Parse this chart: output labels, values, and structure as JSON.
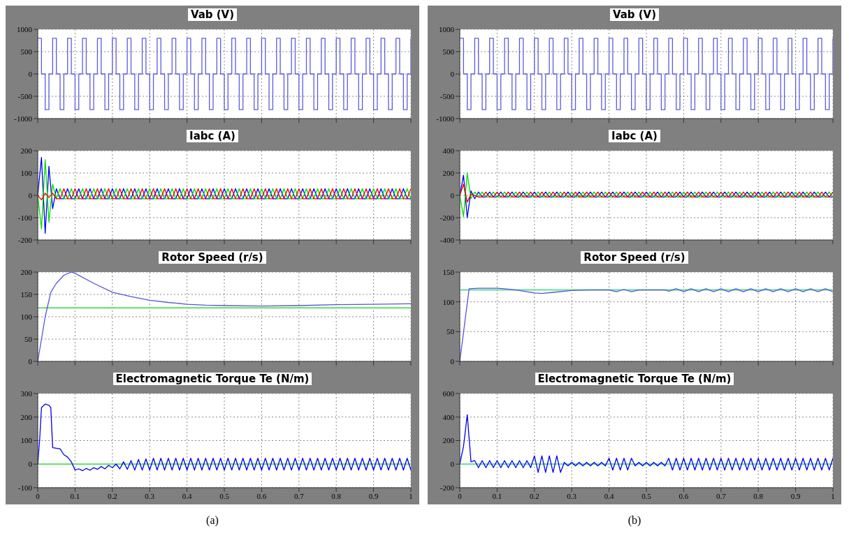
{
  "chart_data": [
    {
      "type": "step",
      "title": "Vab (V)",
      "x": [
        0,
        0.01,
        0.02,
        0.03,
        0.04,
        0.05,
        0.06,
        0.07,
        0.08,
        0.09,
        0.1,
        0.11,
        0.12,
        0.13,
        0.14,
        0.15,
        0.16,
        0.17,
        0.18,
        0.19,
        0.2,
        0.21,
        0.22,
        0.23,
        0.24,
        0.25,
        0.26,
        0.27,
        0.28,
        0.29,
        0.3,
        0.31,
        0.32,
        0.33,
        0.34,
        0.35,
        0.36,
        0.37,
        0.38,
        0.39,
        0.4,
        0.41,
        0.42,
        0.43,
        0.44,
        0.45,
        0.46,
        0.47,
        0.48,
        0.49,
        0.5,
        0.51,
        0.52,
        0.53,
        0.54,
        0.55,
        0.56,
        0.57,
        0.58,
        0.59,
        0.6,
        0.61,
        0.62,
        0.63,
        0.64,
        0.65,
        0.66,
        0.67,
        0.68,
        0.69,
        0.7,
        0.71,
        0.72,
        0.73,
        0.74,
        0.75,
        0.76,
        0.77,
        0.78,
        0.79,
        0.8,
        0.81,
        0.82,
        0.83,
        0.84,
        0.85,
        0.86,
        0.87,
        0.88,
        0.89,
        0.9,
        0.91,
        0.92,
        0.93,
        0.94,
        0.95,
        0.96,
        0.97,
        0.98,
        0.99,
        1
      ],
      "series": [
        {
          "color": "#5c5ce0",
          "values": [
            800,
            0,
            -800,
            0,
            800,
            0,
            -800,
            0,
            800,
            0,
            -800,
            0,
            800,
            0,
            -800,
            0,
            800,
            0,
            -800,
            0,
            800,
            0,
            -800,
            0,
            800,
            0,
            -800,
            0,
            800,
            0,
            -800,
            0,
            800,
            0,
            -800,
            0,
            800,
            0,
            -800,
            0,
            800,
            0,
            -800,
            0,
            800,
            0,
            -800,
            0,
            800,
            0,
            -800,
            0,
            800,
            0,
            -800,
            0,
            800,
            0,
            -800,
            0,
            800,
            0,
            -800,
            0,
            800,
            0,
            -800,
            0,
            800,
            0,
            -800,
            0,
            800,
            0,
            -800,
            0,
            800,
            0,
            -800,
            0,
            800,
            0,
            -800,
            0,
            800,
            0,
            -800,
            0,
            800,
            0,
            -800,
            0,
            800,
            0,
            -800,
            0,
            800,
            0,
            -800,
            0,
            800
          ]
        }
      ],
      "xlim": [
        0,
        1
      ],
      "xticks": [
        0,
        0.1,
        0.2,
        0.3,
        0.4,
        0.5,
        0.6,
        0.7,
        0.8,
        0.9,
        1
      ],
      "ylim": [
        -1000,
        1000
      ],
      "yticks": [
        -1000,
        -500,
        0,
        500,
        1000
      ],
      "grid": true,
      "tick_labels": "y"
    },
    {
      "type": "line",
      "title": "Iabc (A)",
      "x": [
        0,
        0.01,
        0.02,
        0.03,
        0.04,
        0.05,
        0.06,
        0.07,
        0.08,
        0.09,
        0.1,
        0.11,
        0.12,
        0.13,
        0.14,
        0.15,
        0.16,
        0.17,
        0.18,
        0.19,
        0.2,
        0.21,
        0.22,
        0.23,
        0.24,
        0.25,
        0.26,
        0.27,
        0.28,
        0.29,
        0.3,
        0.31,
        0.32,
        0.33,
        0.34,
        0.35,
        0.36,
        0.37,
        0.38,
        0.39,
        0.4,
        0.41,
        0.42,
        0.43,
        0.44,
        0.45,
        0.46,
        0.47,
        0.48,
        0.49,
        0.5,
        0.51,
        0.52,
        0.53,
        0.54,
        0.55,
        0.56,
        0.57,
        0.58,
        0.59,
        0.6,
        0.61,
        0.62,
        0.63,
        0.64,
        0.65,
        0.66,
        0.67,
        0.68,
        0.69,
        0.7,
        0.71,
        0.72,
        0.73,
        0.74,
        0.75,
        0.76,
        0.77,
        0.78,
        0.79,
        0.8,
        0.81,
        0.82,
        0.83,
        0.84,
        0.85,
        0.86,
        0.87,
        0.88,
        0.89,
        0.9,
        0.91,
        0.92,
        0.93,
        0.94,
        0.95,
        0.96,
        0.97,
        0.98,
        0.99,
        1
      ],
      "series": [
        {
          "color": "#0000ee",
          "values": [
            0,
            170,
            -170,
            130,
            -60,
            30,
            -15,
            -15,
            30,
            -15,
            -15,
            30,
            -15,
            -15,
            30,
            -15,
            -15,
            30,
            -15,
            -15,
            30,
            -15,
            -15,
            30,
            -15,
            -15,
            30,
            -15,
            -15,
            30,
            -15,
            -15,
            30,
            -15,
            -15,
            30,
            -15,
            -15,
            30,
            -15,
            -15,
            30,
            -15,
            -15,
            30,
            -15,
            -15,
            30,
            -15,
            -15,
            30,
            -15,
            -15,
            30,
            -15,
            -15,
            30,
            -15,
            -15,
            30,
            -15,
            -15,
            30,
            -15,
            -15,
            30,
            -15,
            -15,
            30,
            -15,
            -15,
            30,
            -15,
            -15,
            30,
            -15,
            -15,
            30,
            -15,
            -15,
            30,
            -15,
            -15,
            30,
            -15,
            -15,
            30,
            -15,
            -15,
            30,
            -15,
            -15,
            30,
            -15,
            -15,
            30,
            -15,
            -15,
            30,
            -15,
            -15
          ]
        },
        {
          "color": "#00dd00",
          "values": [
            0,
            -150,
            160,
            -120,
            50,
            -15,
            30,
            -15,
            -15,
            30,
            -15,
            -15,
            30,
            -15,
            -15,
            30,
            -15,
            -15,
            30,
            -15,
            -15,
            30,
            -15,
            -15,
            30,
            -15,
            -15,
            30,
            -15,
            -15,
            30,
            -15,
            -15,
            30,
            -15,
            -15,
            30,
            -15,
            -15,
            30,
            -15,
            -15,
            30,
            -15,
            -15,
            30,
            -15,
            -15,
            30,
            -15,
            -15,
            30,
            -15,
            -15,
            30,
            -15,
            -15,
            30,
            -15,
            -15,
            30,
            -15,
            -15,
            30,
            -15,
            -15,
            30,
            -15,
            -15,
            30,
            -15,
            -15,
            30,
            -15,
            -15,
            30,
            -15,
            -15,
            30,
            -15,
            -15,
            30,
            -15,
            -15,
            30,
            -15,
            -15,
            30,
            -15,
            -15,
            30,
            -15,
            -15,
            30,
            -15,
            -15,
            30,
            -15,
            -15,
            30,
            -15
          ]
        },
        {
          "color": "#ee0000",
          "values": [
            0,
            -20,
            10,
            -10,
            10,
            -15,
            -15,
            30,
            -15,
            -15,
            30,
            -15,
            -15,
            30,
            -15,
            -15,
            30,
            -15,
            -15,
            30,
            -15,
            -15,
            30,
            -15,
            -15,
            30,
            -15,
            -15,
            30,
            -15,
            -15,
            30,
            -15,
            -15,
            30,
            -15,
            -15,
            30,
            -15,
            -15,
            30,
            -15,
            -15,
            30,
            -15,
            -15,
            30,
            -15,
            -15,
            30,
            -15,
            -15,
            30,
            -15,
            -15,
            30,
            -15,
            -15,
            30,
            -15,
            -15,
            30,
            -15,
            -15,
            30,
            -15,
            -15,
            30,
            -15,
            -15,
            30,
            -15,
            -15,
            30,
            -15,
            -15,
            30,
            -15,
            -15,
            30,
            -15,
            -15,
            30,
            -15,
            -15,
            30,
            -15,
            -15,
            30,
            -15,
            -15,
            30,
            -15,
            -15,
            30,
            -15,
            -15,
            30,
            -15,
            -15,
            30
          ]
        }
      ],
      "xlim": [
        0,
        1
      ],
      "xticks": [
        0,
        0.1,
        0.2,
        0.3,
        0.4,
        0.5,
        0.6,
        0.7,
        0.8,
        0.9,
        1
      ],
      "ylim": [
        -200,
        200
      ],
      "yticks": [
        -200,
        -100,
        0,
        100,
        200
      ],
      "grid": true,
      "tick_labels": "y"
    },
    {
      "type": "line",
      "title": "Rotor Speed (r/s)",
      "series": [
        {
          "color": "#5555dd",
          "x": [
            0,
            0.02,
            0.035,
            0.05,
            0.07,
            0.09,
            0.1,
            0.15,
            0.2,
            0.25,
            0.3,
            0.35,
            0.4,
            0.45,
            0.5,
            0.6,
            0.7,
            0.8,
            0.9,
            1
          ],
          "values": [
            0,
            100,
            155,
            175,
            193,
            200,
            197,
            175,
            155,
            145,
            137,
            132,
            128,
            126,
            125,
            124,
            125,
            127,
            128,
            129
          ]
        }
      ],
      "ref_lines": [
        {
          "axis": "y",
          "value": 120,
          "color": "#66dd66"
        }
      ],
      "xlim": [
        0,
        1
      ],
      "xticks": [
        0,
        0.1,
        0.2,
        0.3,
        0.4,
        0.5,
        0.6,
        0.7,
        0.8,
        0.9,
        1
      ],
      "ylim": [
        0,
        200
      ],
      "yticks": [
        0,
        50,
        100,
        150,
        200
      ],
      "grid": true,
      "tick_labels": "y"
    },
    {
      "type": "line",
      "title": "Electromagnetic Torque Te (N/m)",
      "series": [
        {
          "color": "#0000ee",
          "x": [
            0,
            0.005,
            0.01,
            0.02,
            0.03,
            0.035,
            0.04,
            0.06,
            0.07,
            0.08,
            0.09,
            0.1,
            0.11,
            0.12,
            0.13,
            0.14,
            0.15,
            0.16,
            0.17,
            0.18,
            0.19,
            0.2,
            0.21,
            0.22,
            0.23,
            0.24,
            0.25,
            0.26,
            0.27,
            0.28,
            0.29,
            0.3,
            0.31,
            0.32,
            0.33,
            0.34,
            0.35,
            0.36,
            0.37,
            0.38,
            0.39,
            0.4,
            0.41,
            0.42,
            0.43,
            0.44,
            0.45,
            0.46,
            0.47,
            0.48,
            0.49,
            0.5,
            0.51,
            0.52,
            0.53,
            0.54,
            0.55,
            0.56,
            0.57,
            0.58,
            0.59,
            0.6,
            0.61,
            0.62,
            0.63,
            0.64,
            0.65,
            0.66,
            0.67,
            0.68,
            0.69,
            0.7,
            0.71,
            0.72,
            0.73,
            0.74,
            0.75,
            0.76,
            0.77,
            0.78,
            0.79,
            0.8,
            0.81,
            0.82,
            0.83,
            0.84,
            0.85,
            0.86,
            0.87,
            0.88,
            0.89,
            0.9,
            0.91,
            0.92,
            0.93,
            0.94,
            0.95,
            0.96,
            0.97,
            0.98,
            0.99,
            1
          ],
          "values": [
            0,
            100,
            240,
            255,
            250,
            240,
            70,
            65,
            40,
            30,
            10,
            -25,
            -20,
            -28,
            -18,
            -26,
            -15,
            -22,
            -10,
            -20,
            -5,
            -15,
            0,
            -20,
            10,
            -22,
            15,
            -25,
            20,
            -25,
            22,
            -25,
            25,
            -25,
            25,
            -25,
            25,
            -25,
            25,
            -25,
            25,
            -25,
            25,
            -25,
            25,
            -25,
            25,
            -25,
            25,
            -25,
            25,
            -25,
            25,
            -25,
            25,
            -25,
            25,
            -25,
            25,
            -25,
            25,
            -25,
            25,
            -25,
            25,
            -25,
            25,
            -25,
            25,
            -25,
            25,
            -25,
            25,
            -25,
            25,
            -25,
            25,
            -25,
            25,
            -25,
            25,
            -25,
            25,
            -25,
            25,
            -25,
            25,
            -25,
            25,
            -25,
            25,
            -25,
            25,
            -25,
            25,
            -25,
            25,
            -25,
            25,
            -25,
            25,
            -25
          ]
        }
      ],
      "ref_lines": [
        {
          "axis": "y",
          "value": 0,
          "color": "#66dd66"
        }
      ],
      "annotations": [
        "(a)"
      ],
      "xlim": [
        0,
        1
      ],
      "xticks": [
        0,
        0.1,
        0.2,
        0.3,
        0.4,
        0.5,
        0.6,
        0.7,
        0.8,
        0.9,
        1
      ],
      "ylim": [
        -100,
        300
      ],
      "yticks": [
        -100,
        0,
        100,
        200,
        300
      ],
      "grid": true
    },
    {
      "type": "step",
      "title": "Vab (V)",
      "x": [
        0,
        0.01,
        0.02,
        0.03,
        0.04,
        0.05,
        0.06,
        0.07,
        0.08,
        0.09,
        0.1,
        0.11,
        0.12,
        0.13,
        0.14,
        0.15,
        0.16,
        0.17,
        0.18,
        0.19,
        0.2,
        0.21,
        0.22,
        0.23,
        0.24,
        0.25,
        0.26,
        0.27,
        0.28,
        0.29,
        0.3,
        0.31,
        0.32,
        0.33,
        0.34,
        0.35,
        0.36,
        0.37,
        0.38,
        0.39,
        0.4,
        0.41,
        0.42,
        0.43,
        0.44,
        0.45,
        0.46,
        0.47,
        0.48,
        0.49,
        0.5,
        0.51,
        0.52,
        0.53,
        0.54,
        0.55,
        0.56,
        0.57,
        0.58,
        0.59,
        0.6,
        0.61,
        0.62,
        0.63,
        0.64,
        0.65,
        0.66,
        0.67,
        0.68,
        0.69,
        0.7,
        0.71,
        0.72,
        0.73,
        0.74,
        0.75,
        0.76,
        0.77,
        0.78,
        0.79,
        0.8,
        0.81,
        0.82,
        0.83,
        0.84,
        0.85,
        0.86,
        0.87,
        0.88,
        0.89,
        0.9,
        0.91,
        0.92,
        0.93,
        0.94,
        0.95,
        0.96,
        0.97,
        0.98,
        0.99,
        1
      ],
      "series": [
        {
          "color": "#5c5ce0",
          "values": [
            800,
            0,
            -800,
            0,
            800,
            0,
            -800,
            0,
            800,
            0,
            -800,
            0,
            800,
            0,
            -800,
            0,
            800,
            0,
            -800,
            0,
            800,
            0,
            -800,
            0,
            800,
            0,
            -800,
            0,
            800,
            0,
            -800,
            0,
            800,
            0,
            -800,
            0,
            800,
            0,
            -800,
            0,
            800,
            0,
            -800,
            0,
            800,
            0,
            -800,
            0,
            800,
            0,
            -800,
            0,
            800,
            0,
            -800,
            0,
            800,
            0,
            -800,
            0,
            800,
            0,
            -800,
            0,
            800,
            0,
            -800,
            0,
            800,
            0,
            -800,
            0,
            800,
            0,
            -800,
            0,
            800,
            0,
            -800,
            0,
            800,
            0,
            -800,
            0,
            800,
            0,
            -800,
            0,
            800,
            0,
            -800,
            0,
            800,
            0,
            -800,
            0,
            800,
            0,
            -800,
            0,
            800
          ]
        }
      ],
      "xlim": [
        0,
        1
      ],
      "xticks": [
        0,
        0.1,
        0.2,
        0.3,
        0.4,
        0.5,
        0.6,
        0.7,
        0.8,
        0.9,
        1
      ],
      "ylim": [
        -1000,
        1000
      ],
      "yticks": [
        -1000,
        -500,
        0,
        500,
        1000
      ],
      "grid": true,
      "tick_labels": "y"
    },
    {
      "type": "line",
      "title": "Iabc (A)",
      "x": [
        0,
        0.01,
        0.02,
        0.03,
        0.04,
        0.05,
        0.06,
        0.07,
        0.08,
        0.09,
        0.1,
        0.11,
        0.12,
        0.13,
        0.14,
        0.15,
        0.16,
        0.17,
        0.18,
        0.19,
        0.2,
        0.21,
        0.22,
        0.23,
        0.24,
        0.25,
        0.26,
        0.27,
        0.28,
        0.29,
        0.3,
        0.31,
        0.32,
        0.33,
        0.34,
        0.35,
        0.36,
        0.37,
        0.38,
        0.39,
        0.4,
        0.41,
        0.42,
        0.43,
        0.44,
        0.45,
        0.46,
        0.47,
        0.48,
        0.49,
        0.5,
        0.51,
        0.52,
        0.53,
        0.54,
        0.55,
        0.56,
        0.57,
        0.58,
        0.59,
        0.6,
        0.61,
        0.62,
        0.63,
        0.64,
        0.65,
        0.66,
        0.67,
        0.68,
        0.69,
        0.7,
        0.71,
        0.72,
        0.73,
        0.74,
        0.75,
        0.76,
        0.77,
        0.78,
        0.79,
        0.8,
        0.81,
        0.82,
        0.83,
        0.84,
        0.85,
        0.86,
        0.87,
        0.88,
        0.89,
        0.9,
        0.91,
        0.92,
        0.93,
        0.94,
        0.95,
        0.96,
        0.97,
        0.98,
        0.99,
        1
      ],
      "series": [
        {
          "color": "#0000ee",
          "values": [
            0,
            180,
            -200,
            40,
            -30,
            30,
            -15,
            -15,
            30,
            -15,
            -15,
            30,
            -15,
            -15,
            30,
            -15,
            -15,
            30,
            -15,
            -15,
            30,
            -15,
            -15,
            30,
            -15,
            -15,
            30,
            -15,
            -15,
            30,
            -15,
            -15,
            30,
            -15,
            -15,
            30,
            -15,
            -15,
            30,
            -15,
            -15,
            30,
            -15,
            -15,
            30,
            -15,
            -15,
            30,
            -15,
            -15,
            30,
            -15,
            -15,
            30,
            -15,
            -15,
            30,
            -15,
            -15,
            30,
            -15,
            -15,
            30,
            -15,
            -15,
            30,
            -15,
            -15,
            30,
            -15,
            -15,
            30,
            -15,
            -15,
            30,
            -15,
            -15,
            30,
            -15,
            -15,
            30,
            -15,
            -15,
            30,
            -15,
            -15,
            30,
            -15,
            -15,
            30,
            -15,
            -15,
            30,
            -15,
            -15,
            30,
            -15,
            -15,
            30,
            -15,
            -15
          ]
        },
        {
          "color": "#00dd00",
          "values": [
            0,
            -190,
            200,
            -30,
            30,
            -15,
            30,
            -15,
            -15,
            30,
            -15,
            -15,
            30,
            -15,
            -15,
            30,
            -15,
            -15,
            30,
            -15,
            -15,
            30,
            -15,
            -15,
            30,
            -15,
            -15,
            30,
            -15,
            -15,
            30,
            -15,
            -15,
            30,
            -15,
            -15,
            30,
            -15,
            -15,
            30,
            -15,
            -15,
            30,
            -15,
            -15,
            30,
            -15,
            -15,
            30,
            -15,
            -15,
            30,
            -15,
            -15,
            30,
            -15,
            -15,
            30,
            -15,
            -15,
            30,
            -15,
            -15,
            30,
            -15,
            -15,
            30,
            -15,
            -15,
            30,
            -15,
            -15,
            30,
            -15,
            -15,
            30,
            -15,
            -15,
            30,
            -15,
            -15,
            30,
            -15,
            -15,
            30,
            -15,
            -15,
            30,
            -15,
            -15,
            30,
            -15,
            -15,
            30,
            -15,
            -15,
            30,
            -15,
            -15,
            30,
            -15
          ]
        },
        {
          "color": "#ee0000",
          "values": [
            0,
            100,
            -60,
            10,
            0,
            -15,
            -15,
            30,
            -15,
            -15,
            30,
            -15,
            -15,
            30,
            -15,
            -15,
            30,
            -15,
            -15,
            30,
            -15,
            -15,
            30,
            -15,
            -15,
            30,
            -15,
            -15,
            30,
            -15,
            -15,
            30,
            -15,
            -15,
            30,
            -15,
            -15,
            30,
            -15,
            -15,
            30,
            -15,
            -15,
            30,
            -15,
            -15,
            30,
            -15,
            -15,
            30,
            -15,
            -15,
            30,
            -15,
            -15,
            30,
            -15,
            -15,
            30,
            -15,
            -15,
            30,
            -15,
            -15,
            30,
            -15,
            -15,
            30,
            -15,
            -15,
            30,
            -15,
            -15,
            30,
            -15,
            -15,
            30,
            -15,
            -15,
            30,
            -15,
            -15,
            30,
            -15,
            -15,
            30,
            -15,
            -15,
            30,
            -15,
            -15,
            30,
            -15,
            -15,
            30,
            -15,
            -15,
            30,
            -15,
            -15,
            30
          ]
        }
      ],
      "xlim": [
        0,
        1
      ],
      "xticks": [
        0,
        0.1,
        0.2,
        0.3,
        0.4,
        0.5,
        0.6,
        0.7,
        0.8,
        0.9,
        1
      ],
      "ylim": [
        -400,
        400
      ],
      "yticks": [
        -400,
        -200,
        0,
        200,
        400
      ],
      "grid": true,
      "tick_labels": "y"
    },
    {
      "type": "line",
      "title": "Rotor Speed (r/s)",
      "series": [
        {
          "color": "#5555dd",
          "x": [
            0,
            0.025,
            0.05,
            0.1,
            0.12,
            0.15,
            0.18,
            0.2,
            0.22,
            0.25,
            0.3,
            0.35,
            0.4,
            0.42,
            0.44,
            0.46,
            0.48,
            0.5,
            0.55,
            0.56,
            0.58,
            0.6,
            0.62,
            0.64,
            0.66,
            0.68,
            0.7,
            0.72,
            0.74,
            0.76,
            0.78,
            0.8,
            0.82,
            0.84,
            0.86,
            0.88,
            0.9,
            0.92,
            0.94,
            0.96,
            0.98,
            1
          ],
          "values": [
            0,
            122,
            123,
            123,
            122,
            120,
            117,
            115,
            114,
            116,
            119,
            120,
            120,
            117,
            121,
            117,
            120,
            120,
            120,
            118,
            122,
            117,
            122,
            117,
            122,
            117,
            122,
            117,
            122,
            117,
            122,
            117,
            122,
            117,
            122,
            117,
            122,
            117,
            122,
            117,
            122,
            117
          ]
        }
      ],
      "ref_lines": [
        {
          "axis": "y",
          "value": 120,
          "color": "#66dd99"
        }
      ],
      "xlim": [
        0,
        1
      ],
      "xticks": [
        0,
        0.1,
        0.2,
        0.3,
        0.4,
        0.5,
        0.6,
        0.7,
        0.8,
        0.9,
        1
      ],
      "ylim": [
        0,
        150
      ],
      "yticks": [
        0,
        50,
        100,
        150
      ],
      "grid": true,
      "tick_labels": "y"
    },
    {
      "type": "line",
      "title": "Electromagnetic Torque Te (N/m)",
      "series": [
        {
          "color": "#0000ee",
          "x": [
            0,
            0.01,
            0.02,
            0.03,
            0.04,
            0.05,
            0.06,
            0.07,
            0.08,
            0.09,
            0.1,
            0.11,
            0.12,
            0.13,
            0.14,
            0.15,
            0.16,
            0.17,
            0.18,
            0.19,
            0.2,
            0.21,
            0.22,
            0.23,
            0.24,
            0.25,
            0.26,
            0.27,
            0.28,
            0.29,
            0.3,
            0.31,
            0.32,
            0.33,
            0.34,
            0.35,
            0.36,
            0.37,
            0.38,
            0.39,
            0.4,
            0.41,
            0.42,
            0.43,
            0.44,
            0.45,
            0.46,
            0.47,
            0.48,
            0.49,
            0.5,
            0.51,
            0.52,
            0.53,
            0.54,
            0.55,
            0.56,
            0.57,
            0.58,
            0.59,
            0.6,
            0.61,
            0.62,
            0.63,
            0.64,
            0.65,
            0.66,
            0.67,
            0.68,
            0.69,
            0.7,
            0.71,
            0.72,
            0.73,
            0.74,
            0.75,
            0.76,
            0.77,
            0.78,
            0.79,
            0.8,
            0.81,
            0.82,
            0.83,
            0.84,
            0.85,
            0.86,
            0.87,
            0.88,
            0.89,
            0.9,
            0.91,
            0.92,
            0.93,
            0.94,
            0.95,
            0.96,
            0.97,
            0.98,
            0.99,
            1
          ],
          "values": [
            0,
            150,
            420,
            20,
            30,
            -30,
            30,
            -30,
            30,
            -30,
            30,
            -30,
            30,
            -30,
            30,
            -30,
            30,
            -30,
            30,
            -30,
            70,
            -70,
            70,
            -70,
            70,
            -70,
            70,
            -70,
            15,
            -15,
            15,
            -15,
            15,
            -15,
            15,
            -15,
            15,
            -15,
            15,
            -15,
            50,
            -50,
            50,
            -50,
            50,
            -50,
            50,
            -15,
            15,
            -15,
            15,
            -15,
            15,
            -15,
            15,
            -15,
            50,
            -50,
            50,
            -50,
            50,
            -50,
            50,
            -50,
            50,
            -50,
            50,
            -50,
            50,
            -50,
            50,
            -50,
            50,
            -50,
            50,
            -50,
            50,
            -50,
            50,
            -50,
            50,
            -50,
            50,
            -50,
            50,
            -50,
            50,
            -50,
            50,
            -50,
            50,
            -50,
            50,
            -50,
            50,
            -50,
            50,
            -50,
            50,
            -50,
            50
          ]
        }
      ],
      "ref_lines": [
        {
          "axis": "y",
          "value": 0,
          "color": "#66dd99"
        }
      ],
      "annotations": [
        "(b)"
      ],
      "xlim": [
        0,
        1
      ],
      "xticks": [
        0,
        0.1,
        0.2,
        0.3,
        0.4,
        0.5,
        0.6,
        0.7,
        0.8,
        0.9,
        1
      ],
      "ylim": [
        -200,
        600
      ],
      "yticks": [
        -200,
        0,
        200,
        400,
        600
      ],
      "grid": true
    }
  ]
}
